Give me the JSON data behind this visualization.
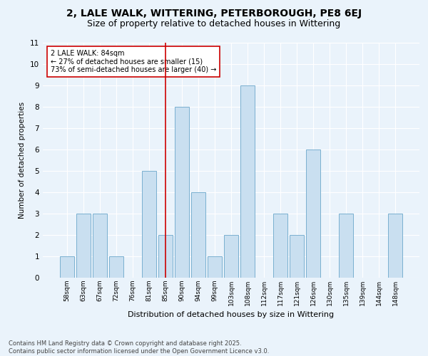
{
  "title1": "2, LALE WALK, WITTERING, PETERBOROUGH, PE8 6EJ",
  "title2": "Size of property relative to detached houses in Wittering",
  "xlabel": "Distribution of detached houses by size in Wittering",
  "ylabel": "Number of detached properties",
  "categories": [
    "58sqm",
    "63sqm",
    "67sqm",
    "72sqm",
    "76sqm",
    "81sqm",
    "85sqm",
    "90sqm",
    "94sqm",
    "99sqm",
    "103sqm",
    "108sqm",
    "112sqm",
    "117sqm",
    "121sqm",
    "126sqm",
    "130sqm",
    "135sqm",
    "139sqm",
    "144sqm",
    "148sqm"
  ],
  "values": [
    1,
    3,
    3,
    1,
    0,
    5,
    2,
    8,
    4,
    1,
    2,
    9,
    0,
    3,
    2,
    6,
    0,
    3,
    0,
    0,
    3
  ],
  "bar_color": "#c9dff0",
  "bar_edge_color": "#7ab0d0",
  "highlight_index": 6,
  "highlight_line_color": "#cc0000",
  "annotation_text": "2 LALE WALK: 84sqm\n← 27% of detached houses are smaller (15)\n73% of semi-detached houses are larger (40) →",
  "annotation_box_color": "#ffffff",
  "annotation_box_edge": "#cc0000",
  "ylim": [
    0,
    11
  ],
  "yticks": [
    0,
    1,
    2,
    3,
    4,
    5,
    6,
    7,
    8,
    9,
    10,
    11
  ],
  "footer": "Contains HM Land Registry data © Crown copyright and database right 2025.\nContains public sector information licensed under the Open Government Licence v3.0.",
  "background_color": "#eaf3fb",
  "grid_color": "#ffffff",
  "title_fontsize": 10,
  "subtitle_fontsize": 9,
  "bar_width": 0.85
}
